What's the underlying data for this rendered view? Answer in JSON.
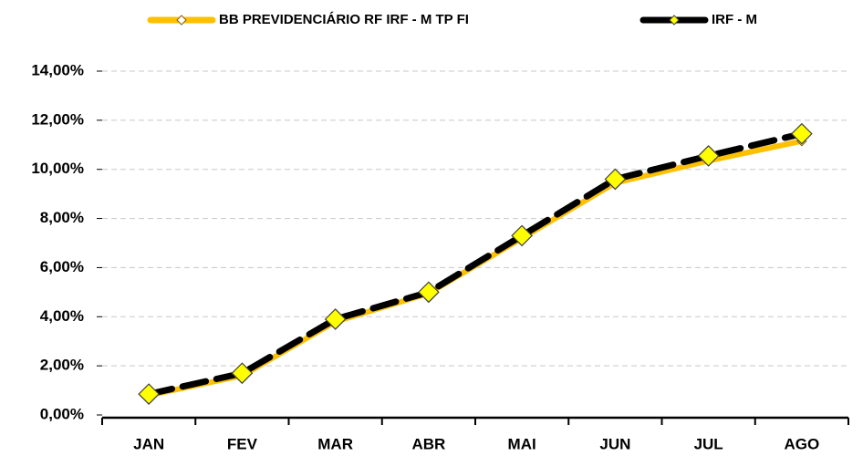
{
  "chart_data": {
    "type": "line",
    "categories": [
      "JAN",
      "FEV",
      "MAR",
      "ABR",
      "MAI",
      "JUN",
      "JUL",
      "AGO"
    ],
    "series": [
      {
        "name": "BB PREVIDENCIÁRIO RF IRF - M TP FI",
        "color": "#ffc000",
        "values": [
          0.8,
          1.6,
          3.8,
          4.95,
          7.2,
          9.45,
          10.35,
          11.15
        ]
      },
      {
        "name": "IRF - M",
        "color": "#000000",
        "values": [
          0.85,
          1.7,
          3.9,
          5.0,
          7.3,
          9.6,
          10.55,
          11.45
        ]
      }
    ],
    "ylim": [
      0,
      14
    ],
    "yticks": [
      {
        "value": 0,
        "label": "0,00%"
      },
      {
        "value": 2,
        "label": "2,00%"
      },
      {
        "value": 4,
        "label": "4,00%"
      },
      {
        "value": 6,
        "label": "6,00%"
      },
      {
        "value": 8,
        "label": "8,00%"
      },
      {
        "value": 10,
        "label": "10,00%"
      },
      {
        "value": 12,
        "label": "12,00%"
      },
      {
        "value": 14,
        "label": "14,00%"
      }
    ],
    "grid": true
  }
}
